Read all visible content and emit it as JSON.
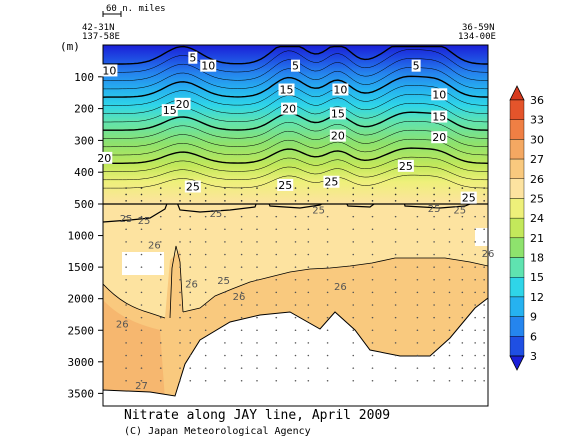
{
  "chart_data": {
    "type": "contour",
    "title": "Nitrate along JAY line, April 2009",
    "credit": "(C) Japan Meteorological Agency",
    "scale_label": "60 n. miles",
    "ylabel": "(m)",
    "start_station": {
      "lat": "42-31N",
      "lon": "137-58E"
    },
    "end_station": {
      "lat": "36-59N",
      "lon": "134-00E"
    },
    "upper_panel": {
      "ylim": [
        0,
        500
      ],
      "yticks": [
        100,
        200,
        300,
        400,
        500
      ],
      "ytick_labels": [
        "100",
        "200",
        "300",
        "400",
        "500"
      ]
    },
    "lower_panel": {
      "ylim": [
        500,
        3700
      ],
      "yticks": [
        1000,
        1500,
        2000,
        2500,
        3000,
        3500
      ],
      "ytick_labels": [
        "1000",
        "1500",
        "2000",
        "2500",
        "3000",
        "3500"
      ]
    },
    "colorbar": {
      "levels": [
        3,
        6,
        9,
        12,
        15,
        18,
        21,
        24,
        25,
        26,
        27,
        30,
        33,
        36
      ],
      "labels": [
        "3",
        "6",
        "9",
        "12",
        "15",
        "18",
        "21",
        "24",
        "25",
        "26",
        "27",
        "30",
        "33",
        "36"
      ],
      "colors": [
        "#1a1fd8",
        "#1f4fe3",
        "#2585ee",
        "#26b2f0",
        "#2fd5e8",
        "#5fe3b0",
        "#8ee26d",
        "#c3e85b",
        "#eef07a",
        "#fde3a0",
        "#f9c97e",
        "#f4a862",
        "#ef7f44",
        "#e4542b",
        "#d73a1e"
      ]
    },
    "contour_labels": [
      {
        "text": "5",
        "x_km": 70,
        "depth": 40
      },
      {
        "text": "10",
        "x_km": 5,
        "depth": 80
      },
      {
        "text": "10",
        "x_km": 82,
        "depth": 65
      },
      {
        "text": "5",
        "x_km": 150,
        "depth": 65
      },
      {
        "text": "15",
        "x_km": 52,
        "depth": 205
      },
      {
        "text": "20",
        "x_km": 62,
        "depth": 185
      },
      {
        "text": "15",
        "x_km": 143,
        "depth": 140
      },
      {
        "text": "20",
        "x_km": 145,
        "depth": 200
      },
      {
        "text": "10",
        "x_km": 185,
        "depth": 140
      },
      {
        "text": "15",
        "x_km": 183,
        "depth": 215
      },
      {
        "text": "20",
        "x_km": 183,
        "depth": 285
      },
      {
        "text": "5",
        "x_km": 244,
        "depth": 65
      },
      {
        "text": "10",
        "x_km": 262,
        "depth": 155
      },
      {
        "text": "15",
        "x_km": 262,
        "depth": 225
      },
      {
        "text": "20",
        "x_km": 262,
        "depth": 290
      },
      {
        "text": "20",
        "x_km": 1,
        "depth": 355
      },
      {
        "text": "25",
        "x_km": 70,
        "depth": 445
      },
      {
        "text": "25",
        "x_km": 142,
        "depth": 440
      },
      {
        "text": "25",
        "x_km": 178,
        "depth": 430
      },
      {
        "text": "25",
        "x_km": 236,
        "depth": 380
      },
      {
        "text": "25",
        "x_km": 285,
        "depth": 480
      },
      {
        "text": "25",
        "x_km": 18,
        "depth": 725
      },
      {
        "text": "25",
        "x_km": 32,
        "depth": 755
      },
      {
        "text": "25",
        "x_km": 88,
        "depth": 640
      },
      {
        "text": "25",
        "x_km": 168,
        "depth": 590
      },
      {
        "text": "25",
        "x_km": 258,
        "depth": 560
      },
      {
        "text": "25",
        "x_km": 278,
        "depth": 590
      },
      {
        "text": "26",
        "x_km": 40,
        "depth": 1140
      },
      {
        "text": "26",
        "x_km": 69,
        "depth": 1760
      },
      {
        "text": "25",
        "x_km": 94,
        "depth": 1700
      },
      {
        "text": "26",
        "x_km": 106,
        "depth": 1960
      },
      {
        "text": "26",
        "x_km": 185,
        "depth": 1800
      },
      {
        "text": "26",
        "x_km": 300,
        "depth": 1280
      },
      {
        "text": "26",
        "x_km": 15,
        "depth": 2390
      },
      {
        "text": "27",
        "x_km": 30,
        "depth": 3370
      }
    ]
  }
}
